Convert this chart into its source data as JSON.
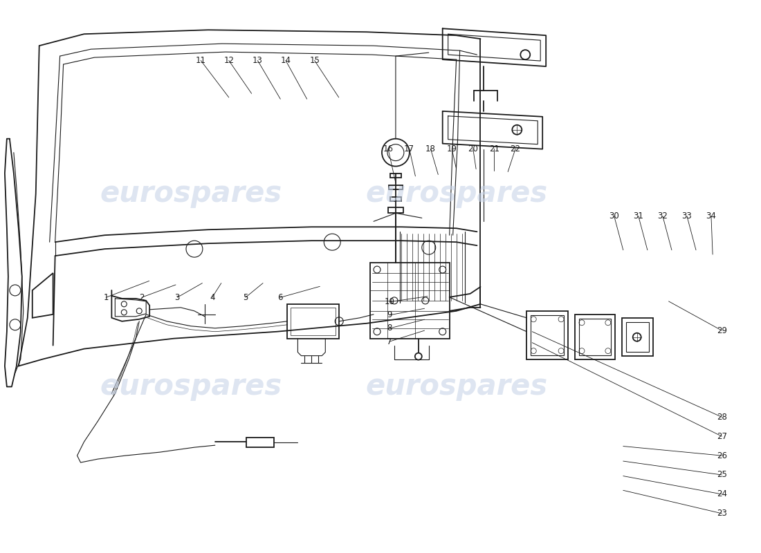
{
  "background_color": "#ffffff",
  "line_color": "#1a1a1a",
  "watermark_color": "#c8d4e8",
  "watermark_text": "eurospares",
  "fig_width": 11.0,
  "fig_height": 8.0,
  "dpi": 100,
  "label_data": [
    [
      1,
      0.138,
      0.538,
      0.195,
      0.508
    ],
    [
      2,
      0.185,
      0.538,
      0.23,
      0.515
    ],
    [
      3,
      0.232,
      0.538,
      0.265,
      0.512
    ],
    [
      4,
      0.278,
      0.538,
      0.29,
      0.512
    ],
    [
      5,
      0.322,
      0.538,
      0.345,
      0.512
    ],
    [
      6,
      0.368,
      0.538,
      0.42,
      0.518
    ],
    [
      7,
      0.512,
      0.618,
      0.558,
      0.598
    ],
    [
      8,
      0.512,
      0.594,
      0.558,
      0.578
    ],
    [
      9,
      0.512,
      0.57,
      0.558,
      0.558
    ],
    [
      10,
      0.512,
      0.546,
      0.562,
      0.536
    ],
    [
      11,
      0.263,
      0.108,
      0.3,
      0.175
    ],
    [
      12,
      0.3,
      0.108,
      0.33,
      0.168
    ],
    [
      13,
      0.338,
      0.108,
      0.368,
      0.178
    ],
    [
      14,
      0.375,
      0.108,
      0.403,
      0.178
    ],
    [
      15,
      0.413,
      0.108,
      0.445,
      0.175
    ],
    [
      16,
      0.51,
      0.268,
      0.52,
      0.33
    ],
    [
      17,
      0.538,
      0.268,
      0.546,
      0.318
    ],
    [
      18,
      0.566,
      0.268,
      0.576,
      0.315
    ],
    [
      19,
      0.594,
      0.268,
      0.6,
      0.305
    ],
    [
      20,
      0.622,
      0.268,
      0.626,
      0.305
    ],
    [
      21,
      0.65,
      0.268,
      0.65,
      0.308
    ],
    [
      22,
      0.678,
      0.268,
      0.668,
      0.31
    ],
    [
      23,
      0.95,
      0.93,
      0.82,
      0.888
    ],
    [
      24,
      0.95,
      0.895,
      0.82,
      0.862
    ],
    [
      25,
      0.95,
      0.86,
      0.82,
      0.835
    ],
    [
      26,
      0.95,
      0.825,
      0.82,
      0.808
    ],
    [
      27,
      0.95,
      0.79,
      0.7,
      0.62
    ],
    [
      28,
      0.95,
      0.755,
      0.7,
      0.6
    ],
    [
      29,
      0.95,
      0.598,
      0.88,
      0.545
    ],
    [
      30,
      0.808,
      0.39,
      0.82,
      0.452
    ],
    [
      31,
      0.84,
      0.39,
      0.852,
      0.452
    ],
    [
      32,
      0.872,
      0.39,
      0.884,
      0.452
    ],
    [
      33,
      0.904,
      0.39,
      0.916,
      0.452
    ],
    [
      34,
      0.936,
      0.39,
      0.938,
      0.46
    ]
  ]
}
